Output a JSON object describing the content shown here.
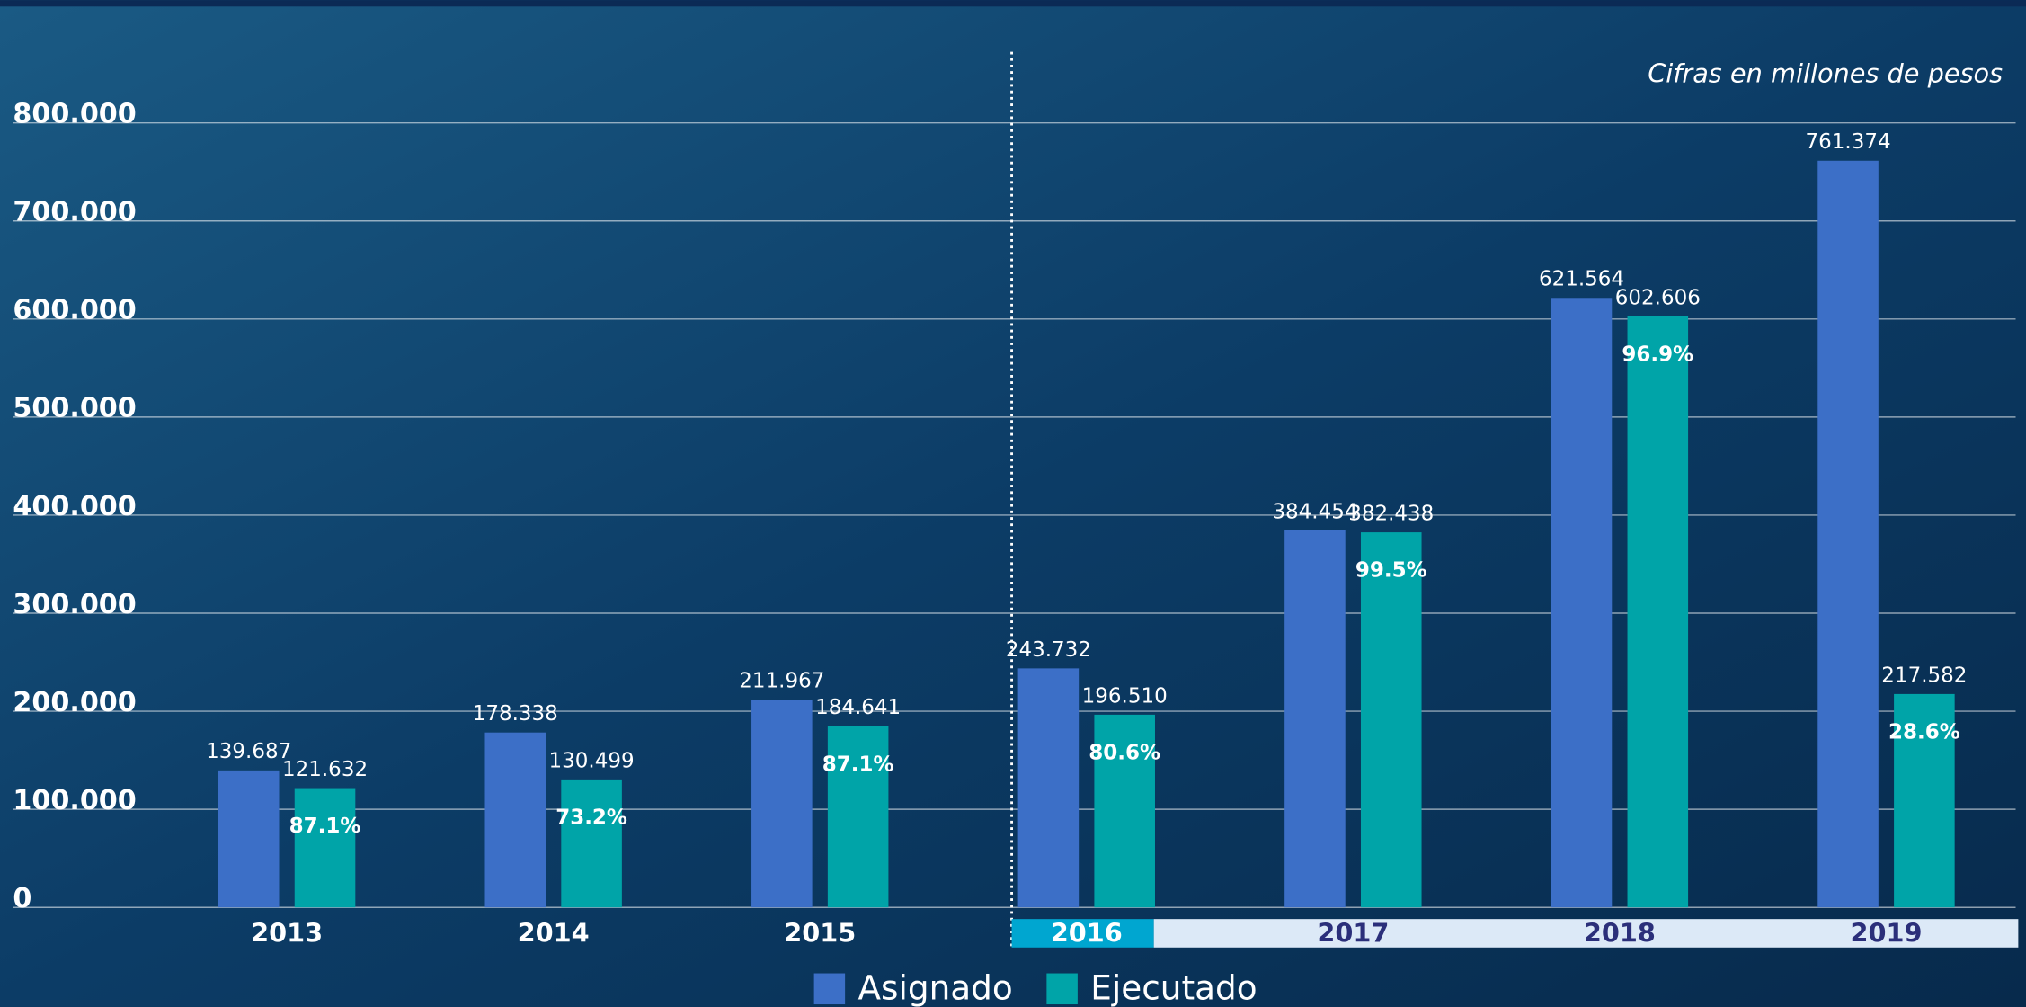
{
  "chart_data": {
    "type": "bar",
    "subtitle": "Cifras en millones de pesos",
    "categories": [
      "2013",
      "2014",
      "2015",
      "2016",
      "2017",
      "2018",
      "2019"
    ],
    "series": [
      {
        "name": "Asignado",
        "color": "#3c6fc7",
        "values": [
          139687,
          178338,
          211967,
          243732,
          384454,
          621564,
          761374
        ],
        "value_labels": [
          "139.687",
          "178.338",
          "211.967",
          "243.732",
          "384.454",
          "621.564",
          "761.374"
        ]
      },
      {
        "name": "Ejecutado",
        "color": "#00a4a8",
        "values": [
          121632,
          130499,
          184641,
          196510,
          382438,
          602606,
          217582
        ],
        "value_labels": [
          "121.632",
          "130.499",
          "184.641",
          "196.510",
          "382.438",
          "602.606",
          "217.582"
        ]
      }
    ],
    "execution_rate": {
      "values": [
        87.1,
        73.2,
        87.1,
        80.6,
        99.5,
        96.9,
        28.6
      ],
      "value_labels": [
        "87.1%",
        "73.2%",
        "87.1%",
        "80.6%",
        "99.5%",
        "96.9%",
        "28.6%"
      ]
    },
    "ylim": [
      0,
      800000
    ],
    "yticks": [
      {
        "value": 0,
        "label": "0"
      },
      {
        "value": 100000,
        "label": "100.000"
      },
      {
        "value": 200000,
        "label": "200.000"
      },
      {
        "value": 300000,
        "label": "300.000"
      },
      {
        "value": 400000,
        "label": "400.000"
      },
      {
        "value": 500000,
        "label": "500.000"
      },
      {
        "value": 600000,
        "label": "600.000"
      },
      {
        "value": 700000,
        "label": "700.000"
      },
      {
        "value": 800000,
        "label": "800.000"
      }
    ],
    "grid": true
  }
}
